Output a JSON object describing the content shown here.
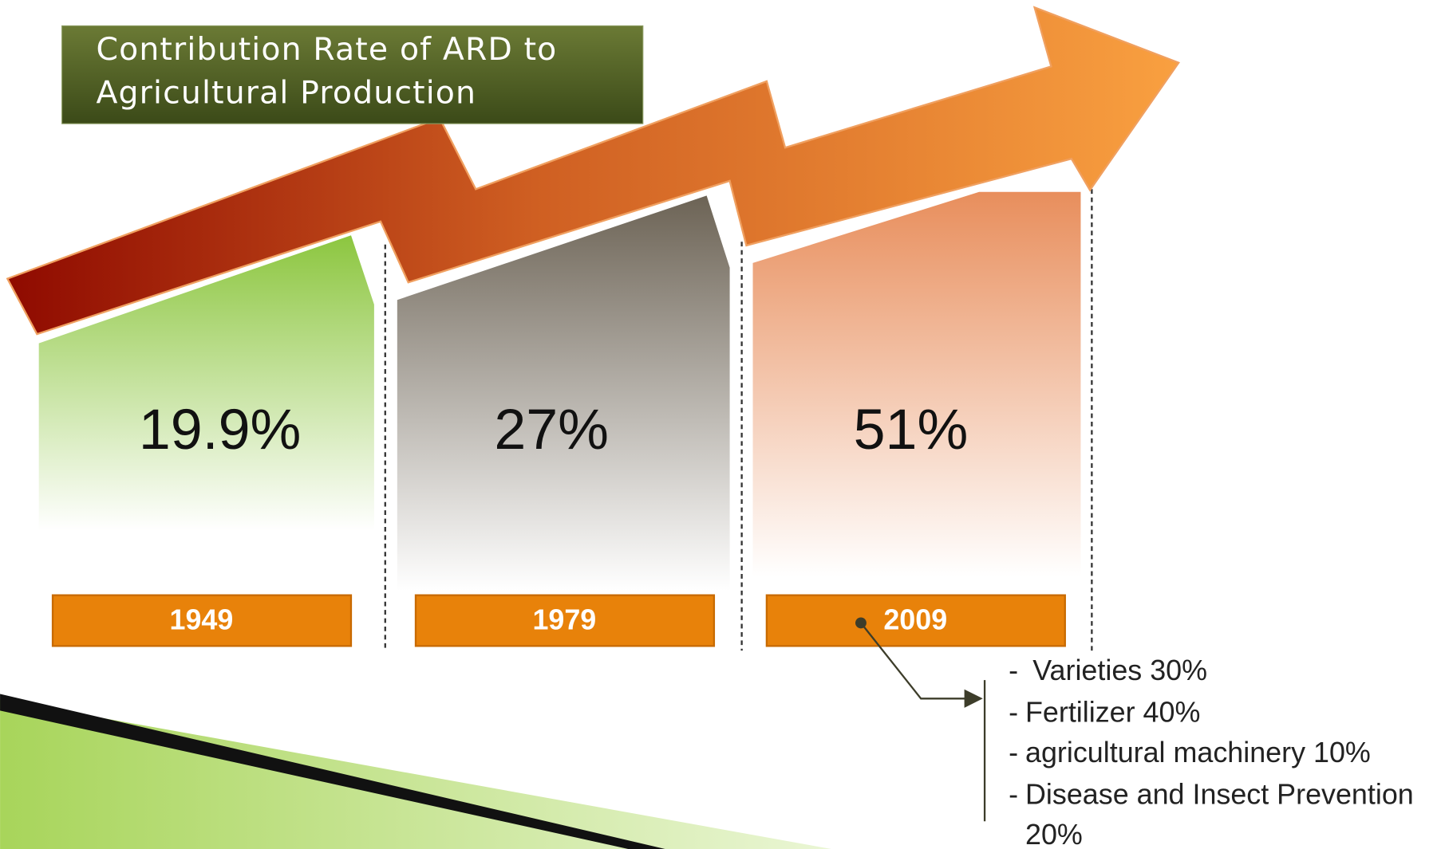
{
  "title": "Contribution Rate of ARD to Agricultural Production",
  "panels": [
    {
      "value": "19.9%",
      "year": "1949"
    },
    {
      "value": "27%",
      "year": "1979"
    },
    {
      "value": "51%",
      "year": "2009"
    }
  ],
  "breakdown": [
    "Varieties 30%",
    "Fertilizer 40%",
    "agricultural machinery 10%",
    "Disease and Insect Prevention 20%"
  ]
}
